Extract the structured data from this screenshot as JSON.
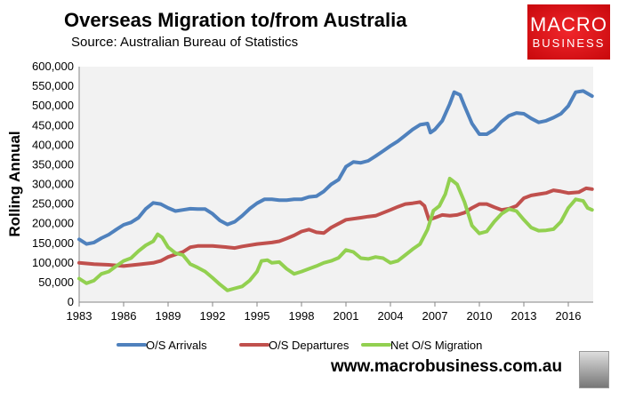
{
  "chart_data": {
    "type": "line",
    "title": "Overseas Migration to/from Australia",
    "subtitle": "Source: Australian Bureau of Statistics",
    "xlabel": "",
    "ylabel": "Rolling Annual",
    "ylim": [
      0,
      600000
    ],
    "xlim": [
      1983,
      2017.6
    ],
    "yticks": [
      "0",
      "50,000",
      "100,000",
      "150,000",
      "200,000",
      "250,000",
      "300,000",
      "350,000",
      "400,000",
      "450,000",
      "500,000",
      "550,000",
      "600,000"
    ],
    "xticks": [
      "1983",
      "1986",
      "1989",
      "1992",
      "1995",
      "1998",
      "2001",
      "2004",
      "2007",
      "2010",
      "2013",
      "2016"
    ],
    "grid": false,
    "background": "#f2f2f2",
    "legend": "bottom",
    "series": [
      {
        "name": "O/S Arrivals",
        "color": "#4f81bd",
        "points": [
          [
            1983,
            160000
          ],
          [
            1983.5,
            148000
          ],
          [
            1984,
            152000
          ],
          [
            1984.5,
            163000
          ],
          [
            1985,
            172000
          ],
          [
            1985.5,
            185000
          ],
          [
            1986,
            197000
          ],
          [
            1986.5,
            203000
          ],
          [
            1987,
            215000
          ],
          [
            1987.5,
            238000
          ],
          [
            1988,
            253000
          ],
          [
            1988.5,
            250000
          ],
          [
            1989,
            240000
          ],
          [
            1989.5,
            232000
          ],
          [
            1990,
            235000
          ],
          [
            1990.5,
            238000
          ],
          [
            1991,
            237000
          ],
          [
            1991.5,
            237000
          ],
          [
            1992,
            225000
          ],
          [
            1992.5,
            208000
          ],
          [
            1993,
            198000
          ],
          [
            1993.5,
            205000
          ],
          [
            1994,
            220000
          ],
          [
            1994.5,
            238000
          ],
          [
            1995,
            252000
          ],
          [
            1995.5,
            262000
          ],
          [
            1996,
            262000
          ],
          [
            1996.5,
            260000
          ],
          [
            1997,
            260000
          ],
          [
            1997.5,
            262000
          ],
          [
            1998,
            262000
          ],
          [
            1998.5,
            268000
          ],
          [
            1999,
            270000
          ],
          [
            1999.5,
            282000
          ],
          [
            2000,
            300000
          ],
          [
            2000.5,
            312000
          ],
          [
            2001,
            345000
          ],
          [
            2001.5,
            357000
          ],
          [
            2002,
            355000
          ],
          [
            2002.5,
            360000
          ],
          [
            2003,
            372000
          ],
          [
            2003.5,
            385000
          ],
          [
            2004,
            398000
          ],
          [
            2004.5,
            410000
          ],
          [
            2005,
            425000
          ],
          [
            2005.5,
            440000
          ],
          [
            2006,
            452000
          ],
          [
            2006.5,
            455000
          ],
          [
            2006.7,
            432000
          ],
          [
            2007,
            440000
          ],
          [
            2007.5,
            462000
          ],
          [
            2008,
            505000
          ],
          [
            2008.3,
            535000
          ],
          [
            2008.7,
            528000
          ],
          [
            2009,
            500000
          ],
          [
            2009.5,
            455000
          ],
          [
            2010,
            428000
          ],
          [
            2010.5,
            428000
          ],
          [
            2011,
            440000
          ],
          [
            2011.5,
            460000
          ],
          [
            2012,
            475000
          ],
          [
            2012.5,
            482000
          ],
          [
            2013,
            480000
          ],
          [
            2013.5,
            468000
          ],
          [
            2014,
            458000
          ],
          [
            2014.5,
            462000
          ],
          [
            2015,
            470000
          ],
          [
            2015.5,
            480000
          ],
          [
            2016,
            500000
          ],
          [
            2016.5,
            535000
          ],
          [
            2017,
            538000
          ],
          [
            2017.6,
            525000
          ]
        ]
      },
      {
        "name": "O/S Departures",
        "color": "#c0504d",
        "points": [
          [
            1983,
            100000
          ],
          [
            1984,
            97000
          ],
          [
            1985,
            95000
          ],
          [
            1986,
            92000
          ],
          [
            1987,
            96000
          ],
          [
            1988,
            100000
          ],
          [
            1988.5,
            105000
          ],
          [
            1989,
            115000
          ],
          [
            1990,
            128000
          ],
          [
            1990.5,
            140000
          ],
          [
            1991,
            143000
          ],
          [
            1992,
            143000
          ],
          [
            1993,
            140000
          ],
          [
            1993.5,
            138000
          ],
          [
            1994,
            142000
          ],
          [
            1995,
            148000
          ],
          [
            1996,
            152000
          ],
          [
            1996.5,
            155000
          ],
          [
            1997,
            162000
          ],
          [
            1997.5,
            170000
          ],
          [
            1998,
            180000
          ],
          [
            1998.5,
            185000
          ],
          [
            1999,
            178000
          ],
          [
            1999.5,
            176000
          ],
          [
            2000,
            190000
          ],
          [
            2000.5,
            200000
          ],
          [
            2001,
            210000
          ],
          [
            2002,
            215000
          ],
          [
            2002.5,
            218000
          ],
          [
            2003,
            220000
          ],
          [
            2004,
            235000
          ],
          [
            2004.5,
            243000
          ],
          [
            2005,
            250000
          ],
          [
            2005.5,
            252000
          ],
          [
            2006,
            255000
          ],
          [
            2006.3,
            245000
          ],
          [
            2006.6,
            210000
          ],
          [
            2007,
            215000
          ],
          [
            2007.5,
            222000
          ],
          [
            2008,
            220000
          ],
          [
            2008.5,
            222000
          ],
          [
            2009,
            228000
          ],
          [
            2009.5,
            240000
          ],
          [
            2010,
            250000
          ],
          [
            2010.5,
            250000
          ],
          [
            2011,
            242000
          ],
          [
            2011.5,
            235000
          ],
          [
            2012,
            238000
          ],
          [
            2012.5,
            245000
          ],
          [
            2013,
            265000
          ],
          [
            2013.5,
            272000
          ],
          [
            2014,
            275000
          ],
          [
            2014.5,
            278000
          ],
          [
            2015,
            285000
          ],
          [
            2015.5,
            282000
          ],
          [
            2016,
            278000
          ],
          [
            2016.7,
            280000
          ],
          [
            2017.2,
            290000
          ],
          [
            2017.6,
            288000
          ]
        ]
      },
      {
        "name": "Net O/S Migration",
        "color": "#92d050",
        "points": [
          [
            1983,
            60000
          ],
          [
            1983.5,
            48000
          ],
          [
            1984,
            55000
          ],
          [
            1984.5,
            72000
          ],
          [
            1985,
            78000
          ],
          [
            1985.5,
            92000
          ],
          [
            1986,
            105000
          ],
          [
            1986.5,
            112000
          ],
          [
            1987,
            130000
          ],
          [
            1987.5,
            145000
          ],
          [
            1988,
            155000
          ],
          [
            1988.3,
            173000
          ],
          [
            1988.6,
            165000
          ],
          [
            1989,
            140000
          ],
          [
            1989.5,
            125000
          ],
          [
            1990,
            120000
          ],
          [
            1990.5,
            97000
          ],
          [
            1991,
            88000
          ],
          [
            1991.5,
            78000
          ],
          [
            1992,
            62000
          ],
          [
            1992.5,
            45000
          ],
          [
            1993,
            30000
          ],
          [
            1993.5,
            35000
          ],
          [
            1994,
            40000
          ],
          [
            1994.5,
            55000
          ],
          [
            1995,
            78000
          ],
          [
            1995.3,
            105000
          ],
          [
            1995.7,
            107000
          ],
          [
            1996,
            100000
          ],
          [
            1996.5,
            102000
          ],
          [
            1997,
            85000
          ],
          [
            1997.5,
            72000
          ],
          [
            1998,
            78000
          ],
          [
            1998.5,
            85000
          ],
          [
            1999,
            92000
          ],
          [
            1999.5,
            100000
          ],
          [
            2000,
            105000
          ],
          [
            2000.5,
            113000
          ],
          [
            2001,
            133000
          ],
          [
            2001.5,
            128000
          ],
          [
            2002,
            112000
          ],
          [
            2002.5,
            110000
          ],
          [
            2003,
            115000
          ],
          [
            2003.5,
            112000
          ],
          [
            2004,
            100000
          ],
          [
            2004.5,
            105000
          ],
          [
            2005,
            120000
          ],
          [
            2005.5,
            135000
          ],
          [
            2006,
            148000
          ],
          [
            2006.5,
            185000
          ],
          [
            2006.9,
            233000
          ],
          [
            2007.3,
            245000
          ],
          [
            2007.7,
            275000
          ],
          [
            2008,
            315000
          ],
          [
            2008.5,
            300000
          ],
          [
            2009,
            255000
          ],
          [
            2009.5,
            195000
          ],
          [
            2010,
            175000
          ],
          [
            2010.5,
            180000
          ],
          [
            2011,
            205000
          ],
          [
            2011.5,
            225000
          ],
          [
            2012,
            237000
          ],
          [
            2012.5,
            232000
          ],
          [
            2013,
            210000
          ],
          [
            2013.5,
            190000
          ],
          [
            2014,
            182000
          ],
          [
            2014.5,
            183000
          ],
          [
            2015,
            186000
          ],
          [
            2015.5,
            205000
          ],
          [
            2016,
            240000
          ],
          [
            2016.5,
            262000
          ],
          [
            2017,
            258000
          ],
          [
            2017.3,
            240000
          ],
          [
            2017.6,
            235000
          ]
        ]
      }
    ]
  },
  "branding": {
    "logo_line1": "MACRO",
    "logo_line2": "BUSINESS",
    "website": "www.macrobusiness.com.au",
    "mascot": "wolf-icon"
  }
}
